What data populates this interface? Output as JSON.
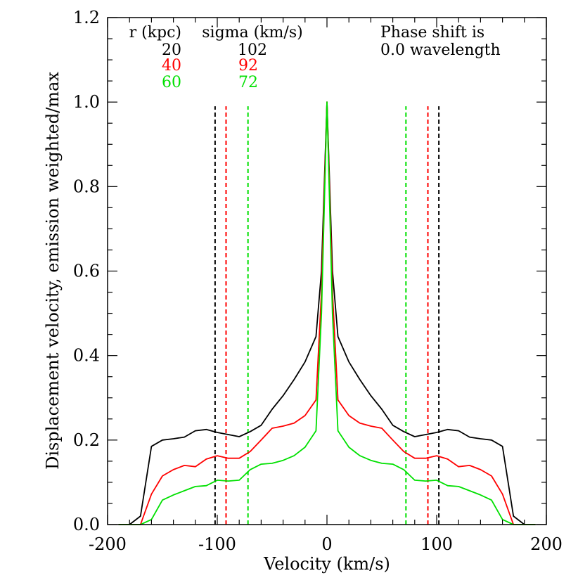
{
  "chart_data": {
    "type": "line",
    "xlabel": "Velocity (km/s)",
    "ylabel": "Displacement velocity, emission weighted/max",
    "xlim": [
      -200,
      200
    ],
    "ylim": [
      0,
      1.2
    ],
    "xticks": [
      -200,
      -100,
      0,
      100,
      200
    ],
    "xtick_labels": [
      "-200",
      "-100",
      "0",
      "100",
      "200"
    ],
    "yticks": [
      0,
      0.2,
      0.4,
      0.6,
      0.8,
      1.0,
      1.2
    ],
    "ytick_labels": [
      "0.0",
      "0.2",
      "0.4",
      "0.6",
      "0.8",
      "1.0",
      "1.2"
    ],
    "legend": {
      "header_r": "r (kpc)",
      "header_sigma": "sigma (km/s)",
      "phase_line1": "Phase shift is",
      "phase_line2": "0.0 wavelength",
      "rows": [
        {
          "r": "20",
          "sigma": "102",
          "color": "#000000"
        },
        {
          "r": "40",
          "sigma": "92",
          "color": "#ff0000"
        },
        {
          "r": "60",
          "sigma": "72",
          "color": "#00e000"
        }
      ]
    },
    "vlines": [
      {
        "x": -102,
        "color": "#000000"
      },
      {
        "x": 102,
        "color": "#000000"
      },
      {
        "x": -92,
        "color": "#ff0000"
      },
      {
        "x": 92,
        "color": "#ff0000"
      },
      {
        "x": -72,
        "color": "#00e000"
      },
      {
        "x": 72,
        "color": "#00e000"
      }
    ],
    "vline_ymax": 0.99,
    "series": [
      {
        "color": "#000000",
        "x": [
          -190,
          -180,
          -170,
          -160,
          -150,
          -140,
          -130,
          -120,
          -110,
          -100,
          -90,
          -80,
          -70,
          -60,
          -50,
          -40,
          -30,
          -20,
          -10,
          -5,
          0,
          5,
          10,
          20,
          30,
          40,
          50,
          60,
          70,
          80,
          90,
          100,
          110,
          120,
          130,
          140,
          150,
          160,
          170,
          180,
          190
        ],
        "y": [
          0.0,
          0.0,
          0.02,
          0.185,
          0.2,
          0.203,
          0.207,
          0.222,
          0.225,
          0.218,
          0.213,
          0.208,
          0.22,
          0.235,
          0.273,
          0.305,
          0.343,
          0.385,
          0.445,
          0.6,
          1.0,
          0.6,
          0.445,
          0.385,
          0.343,
          0.305,
          0.273,
          0.235,
          0.22,
          0.208,
          0.213,
          0.218,
          0.225,
          0.222,
          0.207,
          0.203,
          0.2,
          0.185,
          0.02,
          0.0,
          0.0
        ]
      },
      {
        "color": "#ff0000",
        "x": [
          -190,
          -180,
          -170,
          -160,
          -150,
          -140,
          -130,
          -120,
          -110,
          -100,
          -90,
          -80,
          -70,
          -60,
          -50,
          -40,
          -30,
          -20,
          -10,
          -5,
          0,
          5,
          10,
          20,
          30,
          40,
          50,
          60,
          70,
          80,
          90,
          100,
          110,
          120,
          130,
          140,
          150,
          160,
          170,
          180,
          190
        ],
        "y": [
          0.0,
          0.0,
          0.0,
          0.072,
          0.115,
          0.13,
          0.14,
          0.137,
          0.155,
          0.163,
          0.157,
          0.157,
          0.173,
          0.2,
          0.228,
          0.233,
          0.24,
          0.258,
          0.295,
          0.55,
          1.0,
          0.55,
          0.295,
          0.258,
          0.24,
          0.233,
          0.228,
          0.2,
          0.173,
          0.157,
          0.157,
          0.163,
          0.155,
          0.137,
          0.14,
          0.13,
          0.115,
          0.072,
          0.0,
          0.0,
          0.0
        ]
      },
      {
        "color": "#00e000",
        "x": [
          -190,
          -180,
          -170,
          -160,
          -150,
          -140,
          -130,
          -120,
          -110,
          -100,
          -90,
          -80,
          -70,
          -60,
          -50,
          -40,
          -30,
          -20,
          -10,
          -5,
          0,
          5,
          10,
          20,
          30,
          40,
          50,
          60,
          70,
          80,
          90,
          100,
          110,
          120,
          130,
          140,
          150,
          160,
          170,
          180,
          190
        ],
        "y": [
          0.0,
          0.0,
          0.0,
          0.012,
          0.058,
          0.07,
          0.08,
          0.09,
          0.092,
          0.105,
          0.103,
          0.105,
          0.13,
          0.143,
          0.145,
          0.152,
          0.163,
          0.183,
          0.222,
          0.5,
          1.0,
          0.5,
          0.222,
          0.183,
          0.163,
          0.152,
          0.145,
          0.143,
          0.13,
          0.105,
          0.103,
          0.105,
          0.092,
          0.09,
          0.08,
          0.07,
          0.058,
          0.012,
          0.0,
          0.0,
          0.0
        ]
      }
    ]
  }
}
